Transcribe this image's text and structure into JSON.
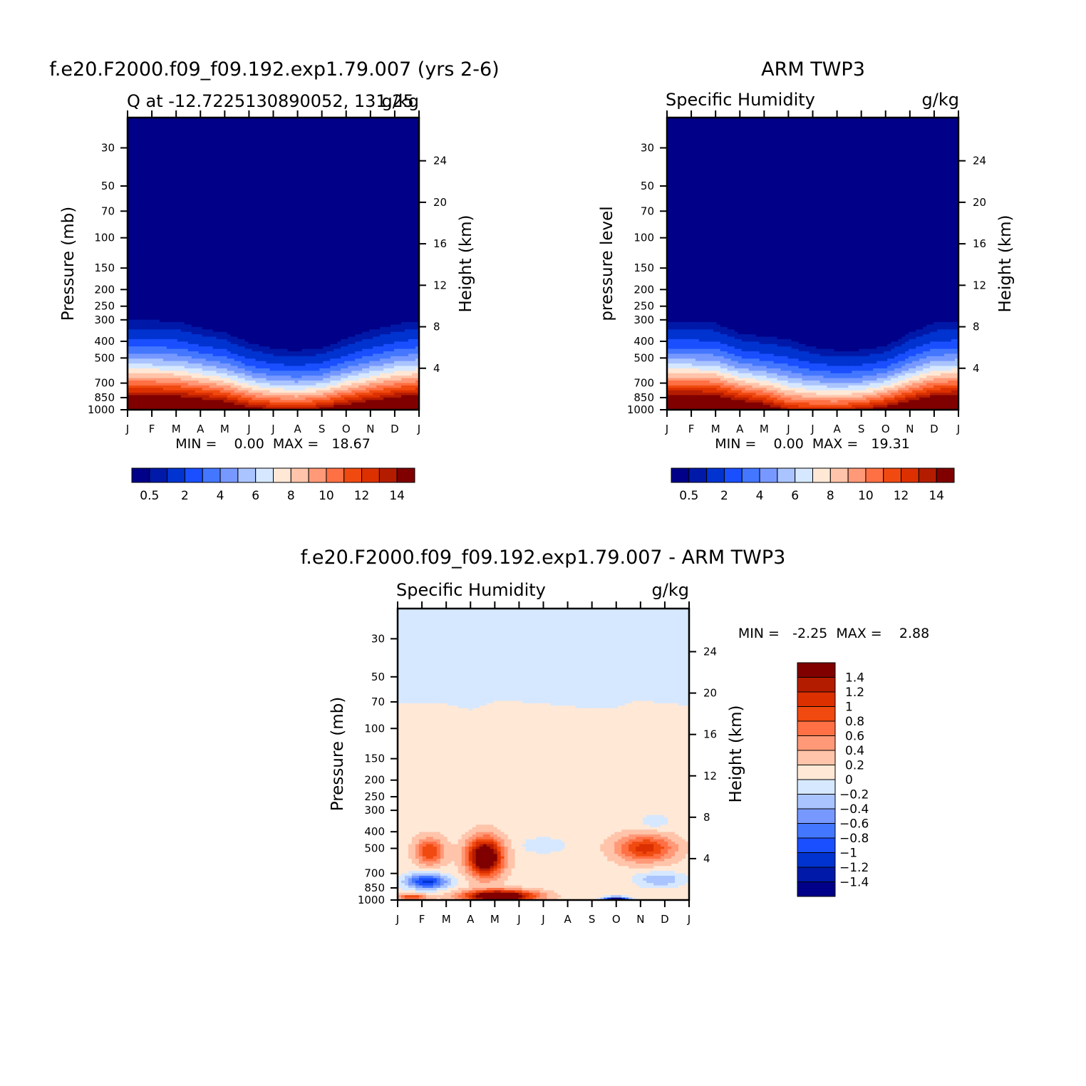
{
  "chart_data": [
    {
      "type": "heatmap",
      "title": "f.e20.F2000.f09_f09.192.exp1.79.007 (yrs 2-6)",
      "subtitle_left": "Q at -12.7225130890052, 131.25",
      "subtitle_right": "g/kg",
      "ylabel": "Pressure (mb)",
      "ylabel_right": "Height (km)",
      "y_ticks": [
        "30",
        "50",
        "70",
        "100",
        "150",
        "200",
        "250",
        "300",
        "400",
        "500",
        "700",
        "850",
        "1000"
      ],
      "y_tick_values": [
        30,
        50,
        70,
        100,
        150,
        200,
        250,
        300,
        400,
        500,
        700,
        850,
        1000
      ],
      "y_right_ticks": [
        "24",
        "20",
        "16",
        "12",
        "8",
        "4"
      ],
      "y_right_values": [
        24,
        20,
        16,
        12,
        8,
        4
      ],
      "x_ticks": [
        "J",
        "F",
        "M",
        "A",
        "M",
        "J",
        "J",
        "A",
        "S",
        "O",
        "N",
        "D",
        "J"
      ],
      "stats": "MIN =    0.00  MAX =   18.67",
      "colorbar_labels": [
        "0.5",
        "2",
        "4",
        "6",
        "8",
        "10",
        "12",
        "14"
      ],
      "surface_pressure_by_month": [
        1000,
        1000,
        1000,
        1000,
        1000,
        1000,
        1000,
        1000,
        1000,
        1000,
        1000,
        1000,
        1000
      ],
      "contour_levels_gkg": [
        0.5,
        1,
        2,
        3,
        4,
        5,
        6,
        7,
        8,
        9,
        10,
        11,
        12,
        13,
        14
      ],
      "q_surface_by_month": [
        18.6,
        18.6,
        18.3,
        17.6,
        16.5,
        14.5,
        13.5,
        13.2,
        14,
        15.5,
        16.8,
        18,
        18.6
      ],
      "moist_depth_km_by_month": [
        10.4,
        10.4,
        10.3,
        9.6,
        9.1,
        8,
        7.3,
        7.1,
        7.4,
        8.4,
        9.3,
        10,
        10.4
      ]
    },
    {
      "type": "heatmap",
      "title": "ARM TWP3",
      "subtitle_left": "Specific Humidity",
      "subtitle_right": "g/kg",
      "ylabel": "pressure level",
      "ylabel_right": "Height (km)",
      "y_ticks": [
        "30",
        "50",
        "70",
        "100",
        "150",
        "200",
        "250",
        "300",
        "400",
        "500",
        "700",
        "850",
        "1000"
      ],
      "y_tick_values": [
        30,
        50,
        70,
        100,
        150,
        200,
        250,
        300,
        400,
        500,
        700,
        850,
        1000
      ],
      "y_right_ticks": [
        "24",
        "20",
        "16",
        "12",
        "8",
        "4"
      ],
      "y_right_values": [
        24,
        20,
        16,
        12,
        8,
        4
      ],
      "x_ticks": [
        "J",
        "F",
        "M",
        "A",
        "M",
        "J",
        "J",
        "A",
        "S",
        "O",
        "N",
        "D",
        "J"
      ],
      "stats": "MIN =    0.00  MAX =   19.31",
      "colorbar_labels": [
        "0.5",
        "2",
        "4",
        "6",
        "8",
        "10",
        "12",
        "14"
      ],
      "contour_levels_gkg": [
        0.5,
        1,
        2,
        3,
        4,
        5,
        6,
        7,
        8,
        9,
        10,
        11,
        12,
        13,
        14
      ],
      "q_surface_by_month": [
        19.2,
        19.2,
        18.8,
        17,
        15.5,
        12.8,
        12.4,
        12.3,
        13,
        14.8,
        16.8,
        18.5,
        19.2
      ],
      "moist_depth_km_by_month": [
        10.2,
        10.2,
        10.1,
        9,
        8.7,
        8.5,
        7.6,
        7.2,
        7.2,
        7.6,
        9,
        10.1,
        10.2
      ]
    },
    {
      "type": "heatmap",
      "title": "f.e20.F2000.f09_f09.192.exp1.79.007 - ARM TWP3",
      "subtitle_left": "Specific Humidity",
      "subtitle_right": "g/kg",
      "ylabel": "Pressure (mb)",
      "ylabel_right": "Height (km)",
      "y_ticks": [
        "30",
        "50",
        "70",
        "100",
        "150",
        "200",
        "250",
        "300",
        "400",
        "500",
        "700",
        "850",
        "1000"
      ],
      "y_tick_values": [
        30,
        50,
        70,
        100,
        150,
        200,
        250,
        300,
        400,
        500,
        700,
        850,
        1000
      ],
      "y_right_ticks": [
        "24",
        "20",
        "16",
        "12",
        "8",
        "4"
      ],
      "y_right_values": [
        24,
        20,
        16,
        12,
        8,
        4
      ],
      "x_ticks": [
        "J",
        "F",
        "M",
        "A",
        "M",
        "J",
        "J",
        "A",
        "S",
        "O",
        "N",
        "D",
        "J"
      ],
      "stats": "MIN =   -2.25  MAX =    2.88",
      "colorbar_labels": [
        "1.4",
        "1.2",
        "1",
        "0.8",
        "0.6",
        "0.4",
        "0.2",
        "0",
        "-0.2",
        "-0.4",
        "-0.6",
        "-0.8",
        "-1",
        "-1.2",
        "-1.4"
      ],
      "contour_levels_gkg": [
        -1.4,
        -1.2,
        -1,
        -0.8,
        -0.6,
        -0.4,
        -0.2,
        0,
        0.2,
        0.4,
        0.6,
        0.8,
        1,
        1.2,
        1.4
      ],
      "stratosphere_value": -0.1,
      "troposphere_value": 0.1,
      "tropopause_pressure_by_month": [
        72,
        72,
        72,
        78,
        70,
        70,
        72,
        74,
        77,
        76,
        68,
        72,
        73
      ]
    }
  ],
  "colors": {
    "palette": [
      "#000088",
      "#0019A8",
      "#0033D0",
      "#1A4FFF",
      "#4477FF",
      "#7799FF",
      "#AAC4FF",
      "#D6E8FF",
      "#FFE8D6",
      "#FFC4AA",
      "#FF9977",
      "#FF7044",
      "#F04A10",
      "#DC3000",
      "#B41C00",
      "#800000"
    ]
  }
}
